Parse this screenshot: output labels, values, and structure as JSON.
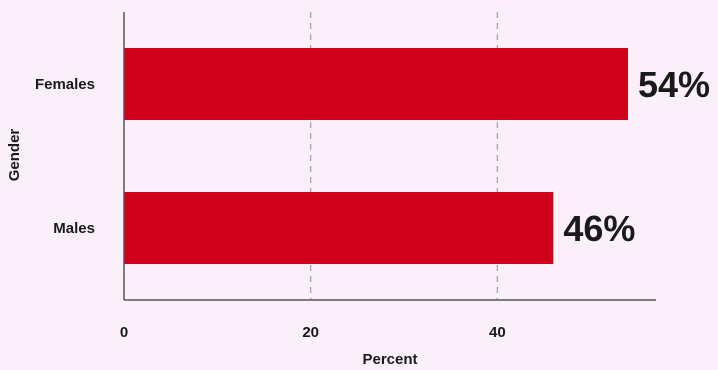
{
  "chart_data": {
    "type": "bar",
    "orientation": "horizontal",
    "title": "",
    "categories": [
      "Females",
      "Males"
    ],
    "values": [
      54,
      46
    ],
    "data_labels": [
      "54%",
      "46%"
    ],
    "xlabel": "Percent",
    "ylabel": "Gender",
    "xticks": [
      0,
      20,
      40
    ],
    "xlim": [
      0,
      57
    ],
    "grid": "vertical dashed",
    "legend": "none",
    "colors": {
      "bar": "#d0021b",
      "background": "#fbf0fa",
      "axis": "#555555",
      "grid": "#a9a9b8"
    }
  }
}
